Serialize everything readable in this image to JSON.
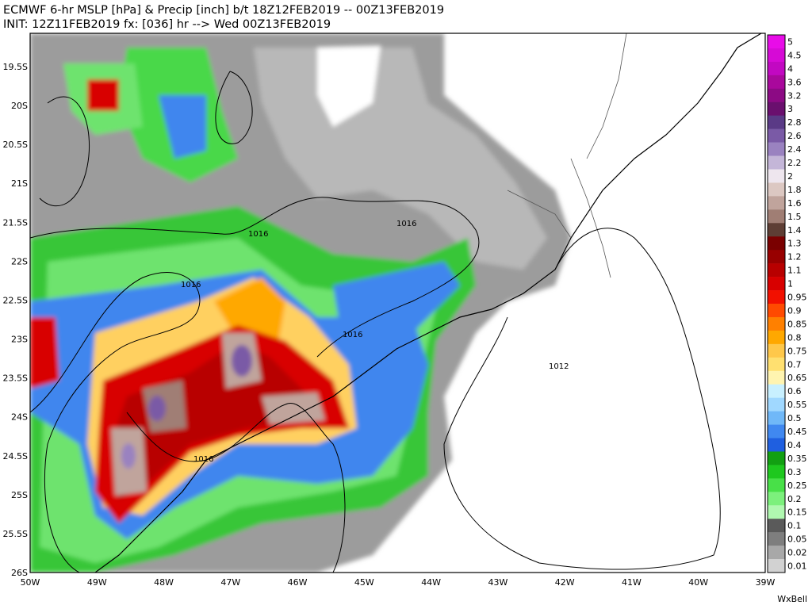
{
  "title": {
    "line1": "ECMWF 6-hr MSLP [hPa] & Precip [inch] b/t 18Z12FEB2019 -- 00Z13FEB2019",
    "line2": "INIT: 12Z11FEB2019 fx: [036] hr --> Wed 00Z13FEB2019"
  },
  "axes": {
    "x_ticks": [
      "50W",
      "49W",
      "48W",
      "47W",
      "46W",
      "45W",
      "44W",
      "43W",
      "42W",
      "41W",
      "40W",
      "39W"
    ],
    "y_ticks": [
      "19.5S",
      "20S",
      "20.5S",
      "21S",
      "21.5S",
      "22S",
      "22.5S",
      "23S",
      "23.5S",
      "24S",
      "24.5S",
      "25S",
      "25.5S",
      "26S"
    ]
  },
  "isobar_labels": [
    "1016",
    "1016",
    "1016",
    "1016",
    "1016",
    "1012"
  ],
  "legend": {
    "entries": [
      {
        "label": "5",
        "color": "#e80ce8"
      },
      {
        "label": "4.5",
        "color": "#d60ad6"
      },
      {
        "label": "4",
        "color": "#c208c2"
      },
      {
        "label": "3.6",
        "color": "#a9089c"
      },
      {
        "label": "3.2",
        "color": "#8c0a84"
      },
      {
        "label": "3",
        "color": "#6a0f6e"
      },
      {
        "label": "2.8",
        "color": "#5a3a86"
      },
      {
        "label": "2.6",
        "color": "#7a5aa6"
      },
      {
        "label": "2.4",
        "color": "#9a82c0"
      },
      {
        "label": "2.2",
        "color": "#c4b6d8"
      },
      {
        "label": "2",
        "color": "#eee6ee"
      },
      {
        "label": "1.8",
        "color": "#dcc8c2"
      },
      {
        "label": "1.6",
        "color": "#c0a49c"
      },
      {
        "label": "1.5",
        "color": "#a07e74"
      },
      {
        "label": "1.4",
        "color": "#5e3e34"
      },
      {
        "label": "1.3",
        "color": "#7a0000"
      },
      {
        "label": "1.2",
        "color": "#980000"
      },
      {
        "label": "1.1",
        "color": "#b80000"
      },
      {
        "label": "1",
        "color": "#d80000"
      },
      {
        "label": "0.95",
        "color": "#f21000"
      },
      {
        "label": "0.9",
        "color": "#ff4a00"
      },
      {
        "label": "0.85",
        "color": "#ff8000"
      },
      {
        "label": "0.8",
        "color": "#ffa800"
      },
      {
        "label": "0.75",
        "color": "#ffc84a"
      },
      {
        "label": "0.7",
        "color": "#ffe070"
      },
      {
        "label": "0.65",
        "color": "#fff4b0"
      },
      {
        "label": "0.6",
        "color": "#c8f0ff"
      },
      {
        "label": "0.55",
        "color": "#a0d8ff"
      },
      {
        "label": "0.5",
        "color": "#70b8f8"
      },
      {
        "label": "0.45",
        "color": "#4088f0"
      },
      {
        "label": "0.4",
        "color": "#1f5fe0"
      },
      {
        "label": "0.35",
        "color": "#12a012"
      },
      {
        "label": "0.3",
        "color": "#1ec81e"
      },
      {
        "label": "0.25",
        "color": "#48e048"
      },
      {
        "label": "0.2",
        "color": "#7cf07c"
      },
      {
        "label": "0.15",
        "color": "#b0f8b0"
      },
      {
        "label": "0.1",
        "color": "#5a5a5a"
      },
      {
        "label": "0.05",
        "color": "#7e7e7e"
      },
      {
        "label": "0.02",
        "color": "#a8a8a8"
      },
      {
        "label": "0.01",
        "color": "#d2d2d2"
      }
    ]
  },
  "credit": "WxBell"
}
